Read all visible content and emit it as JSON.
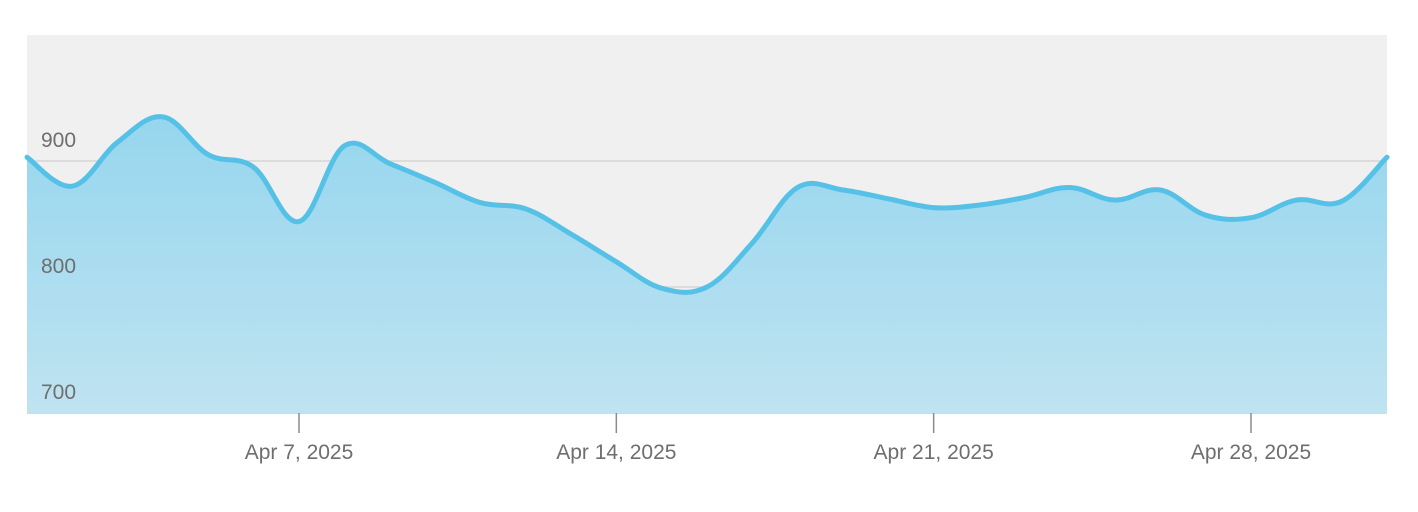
{
  "chart_data": {
    "type": "area",
    "title": "",
    "xlabel": "",
    "ylabel": "",
    "x": [
      "2025-04-01",
      "2025-04-02",
      "2025-04-03",
      "2025-04-04",
      "2025-04-05",
      "2025-04-06",
      "2025-04-07",
      "2025-04-08",
      "2025-04-09",
      "2025-04-10",
      "2025-04-11",
      "2025-04-12",
      "2025-04-13",
      "2025-04-14",
      "2025-04-15",
      "2025-04-16",
      "2025-04-17",
      "2025-04-18",
      "2025-04-19",
      "2025-04-20",
      "2025-04-21",
      "2025-04-22",
      "2025-04-23",
      "2025-04-24",
      "2025-04-25",
      "2025-04-26",
      "2025-04-27",
      "2025-04-28",
      "2025-04-29",
      "2025-04-30",
      "2025-05-01"
    ],
    "series": [
      {
        "values": [
          903,
          880,
          915,
          935,
          905,
          895,
          852,
          912,
          898,
          883,
          867,
          862,
          842,
          820,
          799,
          800,
          835,
          879,
          877,
          870,
          863,
          865,
          871,
          879,
          869,
          877,
          857,
          855,
          869,
          868,
          903
        ]
      }
    ],
    "ylim": [
      700,
      1000
    ],
    "yticks": [
      700,
      800,
      900
    ],
    "ytick_labels": [
      "700",
      "800",
      "900"
    ],
    "xticks": [
      "2025-04-07",
      "2025-04-14",
      "2025-04-21",
      "2025-04-28"
    ],
    "xtick_labels": [
      "Apr 7, 2025",
      "Apr 14, 2025",
      "Apr 21, 2025",
      "Apr 28, 2025"
    ],
    "grid": true,
    "legend": "none",
    "colors": {
      "line": "#56c1e6",
      "fill_top": "#96d6ee",
      "fill_bottom": "#bfe3f1",
      "plot_background": "#f0f0f0",
      "gridline": "#d6d6d6",
      "tick_text": "#6e6e6e"
    }
  }
}
